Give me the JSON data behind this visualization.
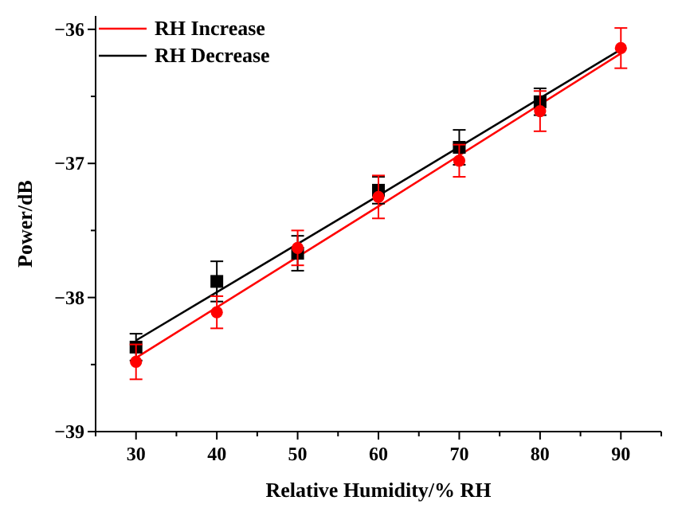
{
  "chart_data": {
    "type": "scatter",
    "xlabel": "Relative Humidity/% RH",
    "ylabel": "Power/dB",
    "x": [
      30,
      40,
      50,
      60,
      70,
      80,
      90
    ],
    "series": [
      {
        "color": "#ff0000",
        "marker": "circle",
        "values": [
          -38.48,
          -38.11,
          -37.63,
          -37.25,
          -36.98,
          -36.61,
          -36.14
        ],
        "errors": [
          0.13,
          0.12,
          0.13,
          0.16,
          0.12,
          0.15,
          0.15
        ]
      },
      {
        "color": "#000000",
        "marker": "square",
        "values": [
          -38.37,
          -37.88,
          -37.67,
          -37.2,
          -36.88,
          -36.54,
          null
        ],
        "errors": [
          0.1,
          0.15,
          0.13,
          0.1,
          0.13,
          0.1,
          null
        ]
      },
      {
        "type": "line",
        "name": "RH Increase",
        "color": "#ff0000",
        "x": [
          30,
          60,
          90
        ],
        "values": [
          -38.45,
          -37.32,
          -36.18
        ]
      },
      {
        "type": "line",
        "name": "RH Decrease",
        "color": "#000000",
        "x": [
          30,
          60,
          90
        ],
        "values": [
          -38.32,
          -37.24,
          -36.15
        ]
      }
    ],
    "xlim": [
      25,
      95
    ],
    "ylim": [
      -39,
      -35.9
    ],
    "xticks": [
      {
        "value": 25,
        "label": null
      },
      30,
      {
        "value": 35,
        "label": null
      },
      40,
      {
        "value": 45,
        "label": null
      },
      50,
      {
        "value": 55,
        "label": null
      },
      60,
      {
        "value": 65,
        "label": null
      },
      70,
      {
        "value": 75,
        "label": null
      },
      80,
      {
        "value": 85,
        "label": null
      },
      90,
      {
        "value": 95,
        "label": null
      }
    ],
    "yticks": [
      {
        "value": -39,
        "label": "−39"
      },
      {
        "value": -38.5,
        "label": null
      },
      {
        "value": -38,
        "label": "−38"
      },
      {
        "value": -37.5,
        "label": null
      },
      {
        "value": -37,
        "label": "−37"
      },
      {
        "value": -36.5,
        "label": null
      },
      {
        "value": -36,
        "label": "−36"
      }
    ],
    "legend": "top left",
    "grid": false
  }
}
